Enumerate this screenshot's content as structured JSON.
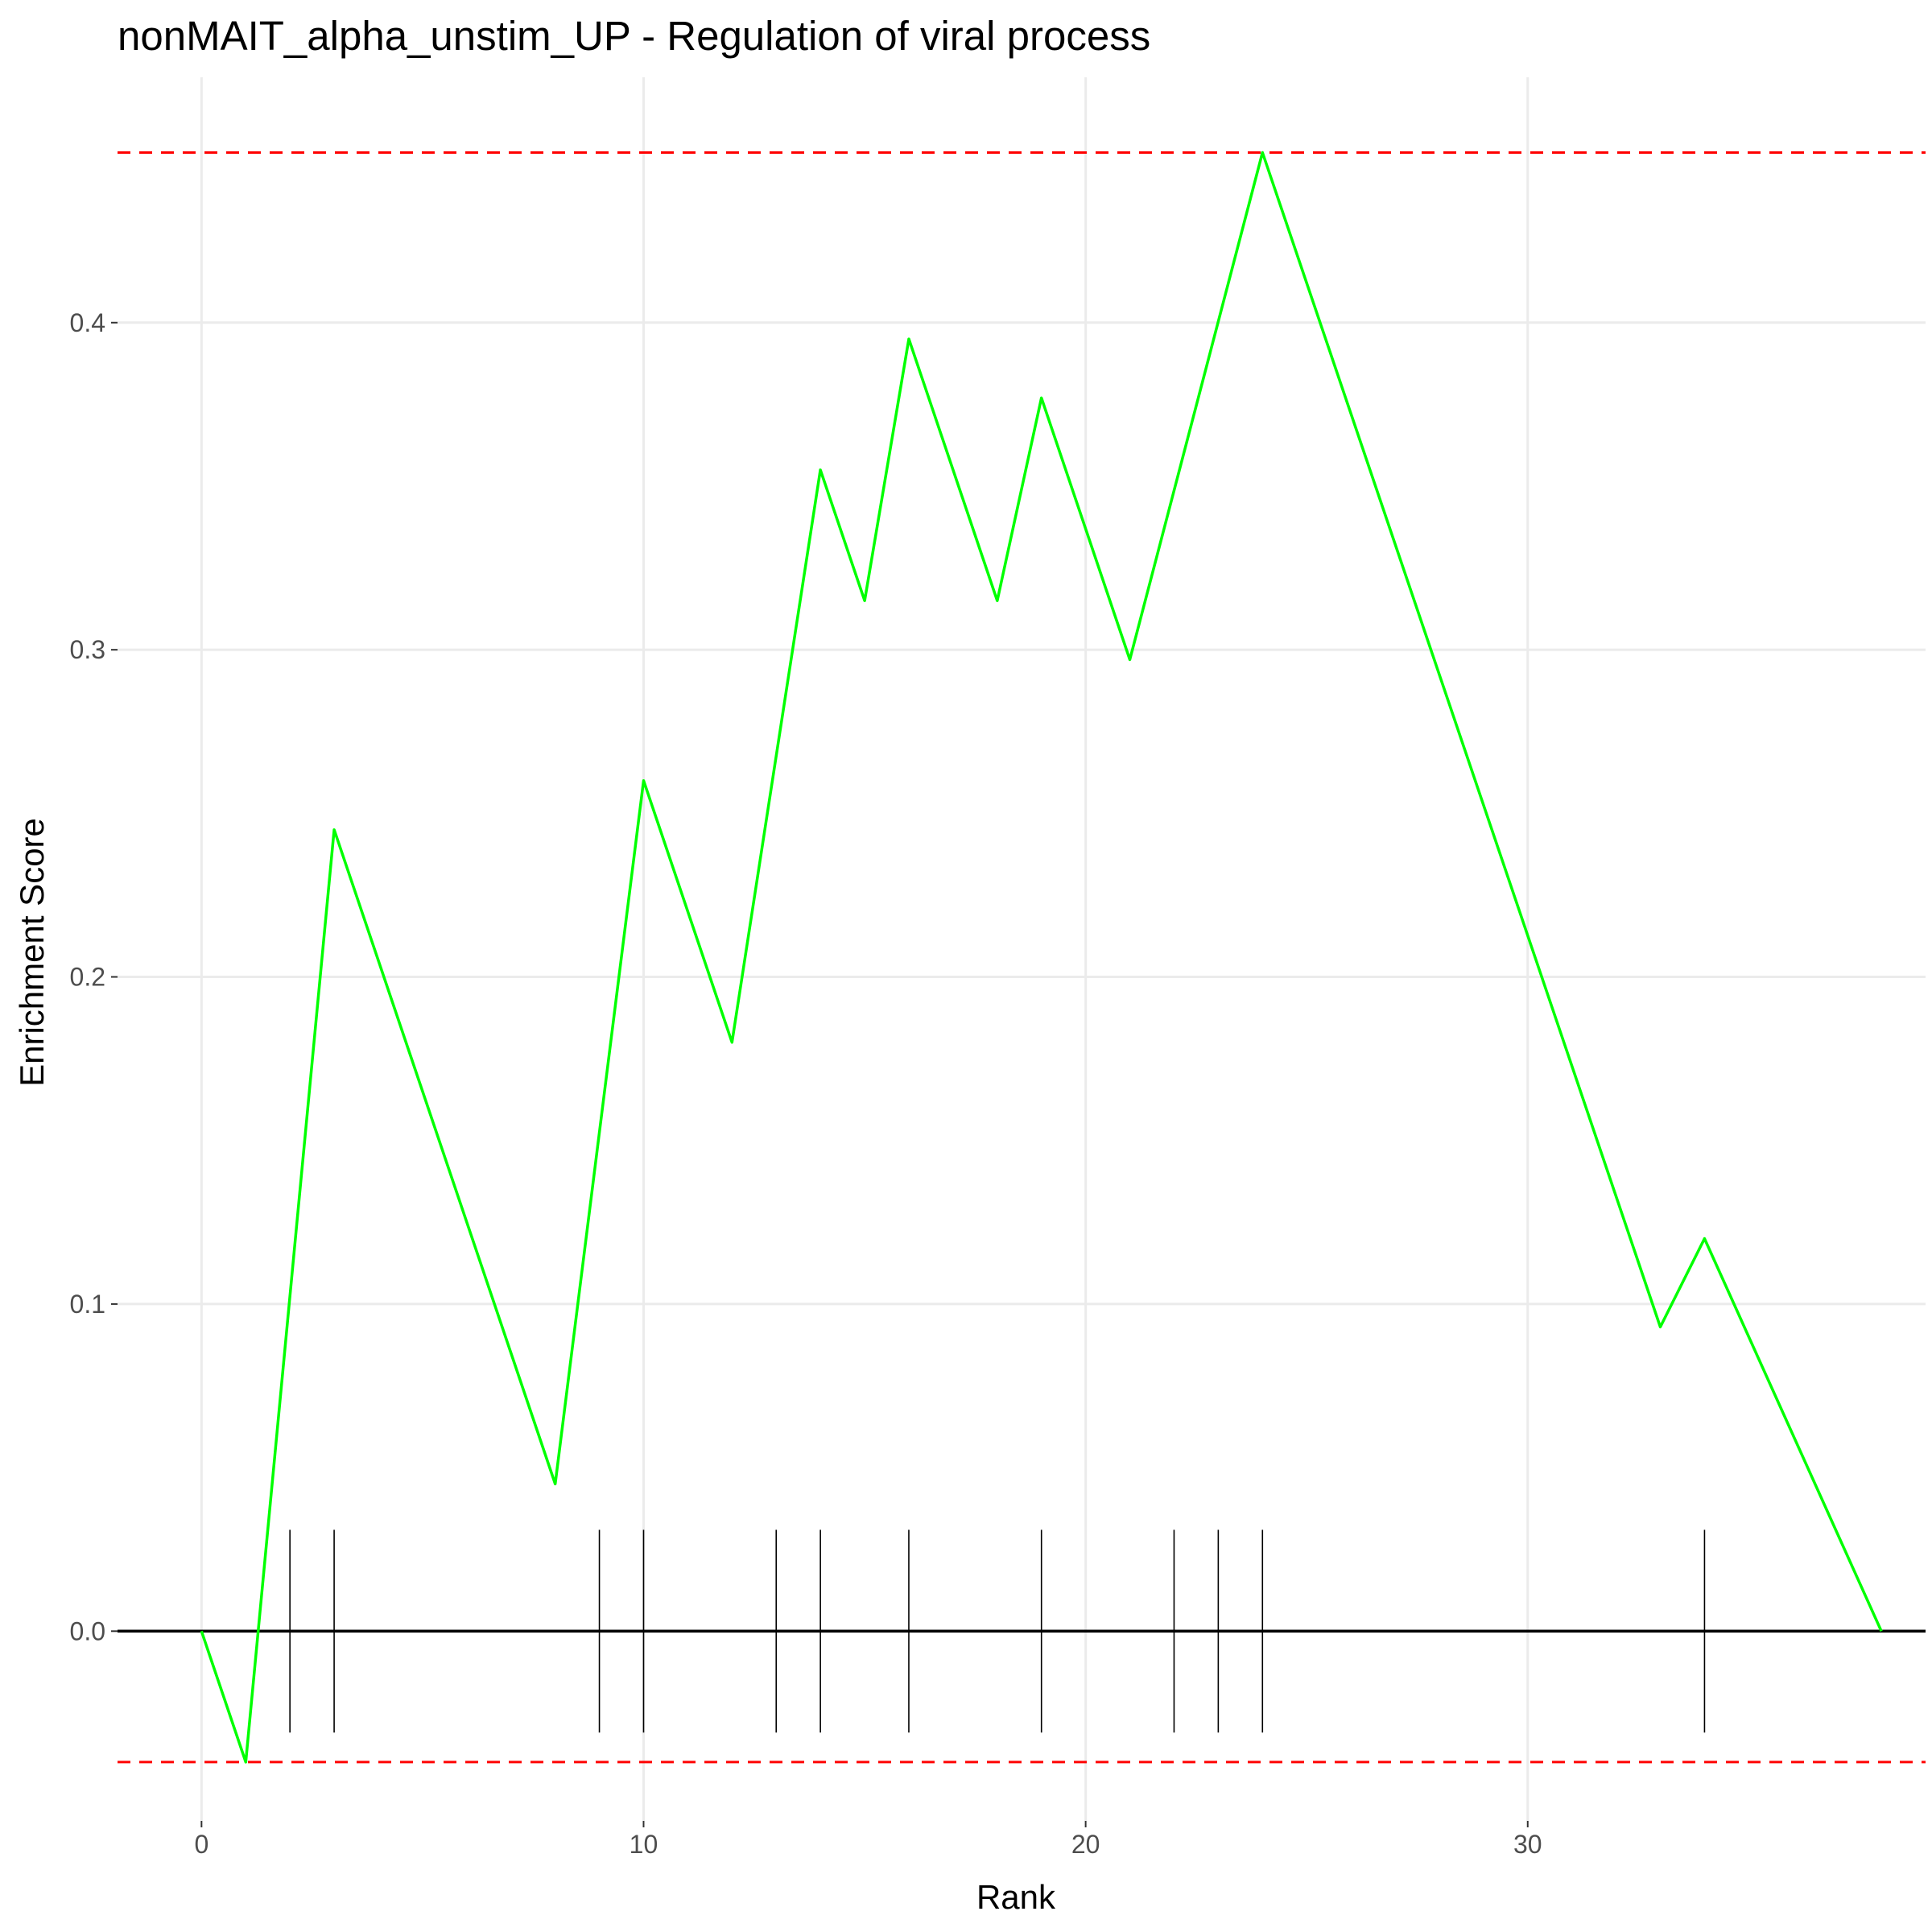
{
  "chart_data": {
    "type": "line",
    "title": "nonMAIT_alpha_unstim_UP - Regulation of viral process",
    "xlabel": "Rank",
    "ylabel": "Enrichment Score",
    "xlim": [
      -1.9,
      39.0
    ],
    "ylim": [
      -0.058,
      0.475
    ],
    "x_ticks": [
      0,
      10,
      20,
      30
    ],
    "x_tick_labels": [
      "0",
      "10",
      "20",
      "30"
    ],
    "y_ticks": [
      0.0,
      0.1,
      0.2,
      0.3,
      0.4
    ],
    "y_tick_labels": [
      "0.0",
      "0.1",
      "0.2",
      "0.3",
      "0.4"
    ],
    "grid": true,
    "series": [
      {
        "x": [
          0,
          1,
          3,
          8,
          10,
          12,
          14,
          15,
          16,
          18,
          19,
          21,
          24,
          33,
          34,
          38
        ],
        "y": [
          0.0,
          -0.04,
          0.245,
          0.045,
          0.26,
          0.18,
          0.355,
          0.315,
          0.395,
          0.315,
          0.377,
          0.297,
          0.452,
          0.093,
          0.12,
          0.0
        ],
        "color": "#00ff00"
      }
    ],
    "hit_ranks": [
      2,
      3,
      9,
      10,
      13,
      14,
      16,
      19,
      22,
      23,
      24,
      34
    ],
    "hit_mark_range": [
      -0.031,
      0.031
    ],
    "reference_lines": {
      "max_es": 0.452,
      "min_es": -0.04,
      "zero": 0.0,
      "dashed_color": "#ff0000",
      "zero_color": "#000000"
    }
  }
}
